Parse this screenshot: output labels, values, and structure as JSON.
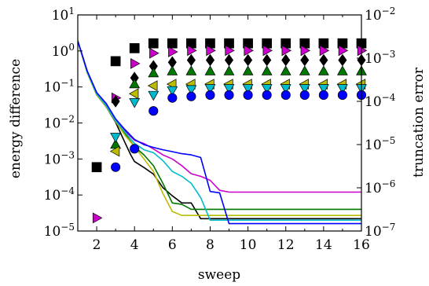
{
  "chart_data": {
    "type": "line",
    "xlabel": "sweep",
    "ylabel_left": "energy difference",
    "ylabel_right": "truncation error",
    "xlim": [
      1,
      16
    ],
    "ylim_left": [
      1e-05,
      10
    ],
    "ylim_right": [
      1e-07,
      0.01
    ],
    "y_scale": "log",
    "grid": false,
    "legend": "none",
    "x_ticks": [
      {
        "v": 2,
        "label": "2"
      },
      {
        "v": 4,
        "label": "4"
      },
      {
        "v": 6,
        "label": "6"
      },
      {
        "v": 8,
        "label": "8"
      },
      {
        "v": 10,
        "label": "10"
      },
      {
        "v": 12,
        "label": "12"
      },
      {
        "v": 14,
        "label": "14"
      },
      {
        "v": 16,
        "label": "16"
      }
    ],
    "y_ticks_left": [
      {
        "v": 10,
        "base": "10",
        "exp": "1"
      },
      {
        "v": 1,
        "base": "10",
        "exp": "0"
      },
      {
        "v": 0.1,
        "base": "10",
        "exp": "−1"
      },
      {
        "v": 0.01,
        "base": "10",
        "exp": "−2"
      },
      {
        "v": 0.001,
        "base": "10",
        "exp": "−3"
      },
      {
        "v": 0.0001,
        "base": "10",
        "exp": "−4"
      },
      {
        "v": 1e-05,
        "base": "10",
        "exp": "−5"
      }
    ],
    "y_ticks_right": [
      {
        "v": 0.01,
        "base": "10",
        "exp": "−2"
      },
      {
        "v": 0.001,
        "base": "10",
        "exp": "−3"
      },
      {
        "v": 0.0001,
        "base": "10",
        "exp": "−4"
      },
      {
        "v": 1e-05,
        "base": "10",
        "exp": "−5"
      },
      {
        "v": 1e-06,
        "base": "10",
        "exp": "−6"
      },
      {
        "v": 1e-07,
        "base": "10",
        "exp": "−7"
      }
    ],
    "series": [
      {
        "color": "#000000",
        "marker": "square",
        "energy_difference": {
          "x": [
            1,
            1.5,
            2,
            2.5,
            3,
            3.5,
            3.8,
            4,
            4.5,
            5,
            5.5,
            6,
            6.5,
            7,
            7.5,
            16
          ],
          "y": [
            1.9,
            0.25,
            0.06,
            0.028,
            0.0105,
            0.0028,
            0.0013,
            0.00085,
            0.00058,
            0.00038,
            0.00016,
            9.5e-05,
            6e-05,
            6e-05,
            2.2e-05,
            2.2e-05
          ]
        },
        "truncation_error": {
          "x": [
            2,
            3,
            4,
            5,
            6,
            7,
            8,
            9,
            10,
            11,
            12,
            13,
            14,
            15,
            16
          ],
          "y": [
            3e-06,
            0.00085,
            0.0017,
            0.0022,
            0.0022,
            0.0022,
            0.0022,
            0.0022,
            0.0022,
            0.0022,
            0.0022,
            0.0022,
            0.0022,
            0.0022,
            0.0022
          ]
        }
      },
      {
        "color": "#cc00cc",
        "marker": "triangle-right",
        "energy_difference": {
          "x": [
            1,
            1.5,
            2,
            2.5,
            3,
            3.5,
            4,
            4.5,
            5,
            5.5,
            6,
            6.5,
            7,
            7.5,
            8,
            8.5,
            9,
            16
          ],
          "y": [
            1.9,
            0.27,
            0.065,
            0.031,
            0.012,
            0.006,
            0.0033,
            0.0027,
            0.0019,
            0.0013,
            0.001,
            0.00065,
            0.00039,
            0.00033,
            0.000255,
            0.000135,
            0.00012,
            0.00012
          ]
        },
        "truncation_error": {
          "x": [
            2,
            3,
            4,
            5,
            6,
            7,
            8,
            9,
            10,
            11,
            12,
            13,
            14,
            15,
            16
          ],
          "y": [
            2e-07,
            0.00012,
            0.00075,
            0.0013,
            0.0014,
            0.0015,
            0.0015,
            0.0015,
            0.0015,
            0.0015,
            0.0015,
            0.0015,
            0.0015,
            0.0015,
            0.0015
          ]
        }
      },
      {
        "color": "#000000",
        "marker": "diamond",
        "energy_difference": {
          "x": [
            3,
            16
          ],
          "y": [
            0.0105,
            0.0105
          ]
        },
        "truncation_error": {
          "x": [
            3,
            4,
            5,
            6,
            7,
            8,
            9,
            10,
            11,
            12,
            13,
            14,
            15,
            16
          ],
          "y": [
            0.0001,
            0.00035,
            0.00065,
            0.0008,
            0.0009,
            0.0009,
            0.0009,
            0.0009,
            0.0009,
            0.0009,
            0.0009,
            0.0009,
            0.0009,
            0.0009
          ]
        }
      },
      {
        "color": "#007700",
        "marker": "triangle-up",
        "energy_difference": {
          "x": [
            1,
            1.5,
            2,
            2.5,
            3,
            3.5,
            4,
            4.5,
            5,
            5.5,
            6,
            6.5,
            7,
            16
          ],
          "y": [
            1.9,
            0.26,
            0.062,
            0.029,
            0.0115,
            0.005,
            0.0022,
            0.0013,
            0.00065,
            0.00021,
            6e-05,
            5.5e-05,
            4e-05,
            4e-05
          ]
        },
        "truncation_error": {
          "x": [
            3,
            4,
            5,
            6,
            7,
            8,
            9,
            10,
            11,
            12,
            13,
            14,
            15,
            16
          ],
          "y": [
            1e-05,
            0.00025,
            0.00045,
            0.0005,
            0.0005,
            0.0005,
            0.0005,
            0.0005,
            0.0005,
            0.0005,
            0.0005,
            0.0005,
            0.0005,
            0.0005
          ]
        }
      },
      {
        "color": "#bbbb00",
        "marker": "triangle-left",
        "energy_difference": {
          "x": [
            1,
            1.5,
            2,
            2.5,
            3,
            3.5,
            4,
            4.5,
            5,
            5.5,
            6,
            6.5,
            7,
            7.5,
            16
          ],
          "y": [
            1.9,
            0.25,
            0.06,
            0.028,
            0.011,
            0.0045,
            0.0022,
            0.001,
            0.00045,
            0.00011,
            3.5e-05,
            2.7e-05,
            2.7e-05,
            2.7e-05,
            2.7e-05
          ]
        },
        "truncation_error": {
          "x": [
            3,
            4,
            5,
            6,
            7,
            8,
            9,
            10,
            11,
            12,
            13,
            14,
            15,
            16
          ],
          "y": [
            7e-06,
            0.00015,
            0.00023,
            0.00025,
            0.00025,
            0.00025,
            0.00025,
            0.00025,
            0.00025,
            0.00025,
            0.00025,
            0.00025,
            0.00025,
            0.00025
          ]
        }
      },
      {
        "color": "#00bbcc",
        "marker": "triangle-down",
        "energy_difference": {
          "x": [
            1,
            1.5,
            2,
            2.5,
            3,
            3.5,
            4,
            4.5,
            5,
            5.5,
            6,
            6.5,
            7,
            7.5,
            8,
            16
          ],
          "y": [
            1.9,
            0.26,
            0.064,
            0.03,
            0.0115,
            0.0055,
            0.0027,
            0.0018,
            0.0015,
            0.0009,
            0.00045,
            0.00033,
            0.00021,
            8.5e-05,
            2e-05,
            2e-05
          ]
        },
        "truncation_error": {
          "x": [
            3,
            4,
            5,
            6,
            7,
            8,
            9,
            10,
            11,
            12,
            13,
            14,
            15,
            16
          ],
          "y": [
            1.5e-05,
            9.5e-05,
            0.00014,
            0.00018,
            0.00019,
            0.0002,
            0.0002,
            0.0002,
            0.0002,
            0.0002,
            0.0002,
            0.0002,
            0.0002,
            0.0002
          ]
        }
      },
      {
        "color": "#0000ff",
        "marker": "circle",
        "energy_difference": {
          "x": [
            1,
            1.5,
            2,
            2.5,
            3,
            3.5,
            4,
            4.5,
            5,
            5.5,
            6,
            6.5,
            7,
            7.5,
            8,
            8.5,
            9,
            16
          ],
          "y": [
            1.9,
            0.28,
            0.07,
            0.035,
            0.013,
            0.0065,
            0.0035,
            0.0025,
            0.0021,
            0.0018,
            0.0016,
            0.0014,
            0.0013,
            0.0011,
            0.000125,
            0.000115,
            1.6e-05,
            1.6e-05
          ]
        },
        "truncation_error": {
          "x": [
            3,
            4,
            5,
            6,
            7,
            8,
            9,
            10,
            11,
            12,
            13,
            14,
            15,
            16
          ],
          "y": [
            3e-06,
            8e-06,
            6e-05,
            0.00012,
            0.00013,
            0.00014,
            0.00014,
            0.00014,
            0.00014,
            0.00014,
            0.00014,
            0.00014,
            0.00014,
            0.00014
          ]
        }
      }
    ]
  }
}
